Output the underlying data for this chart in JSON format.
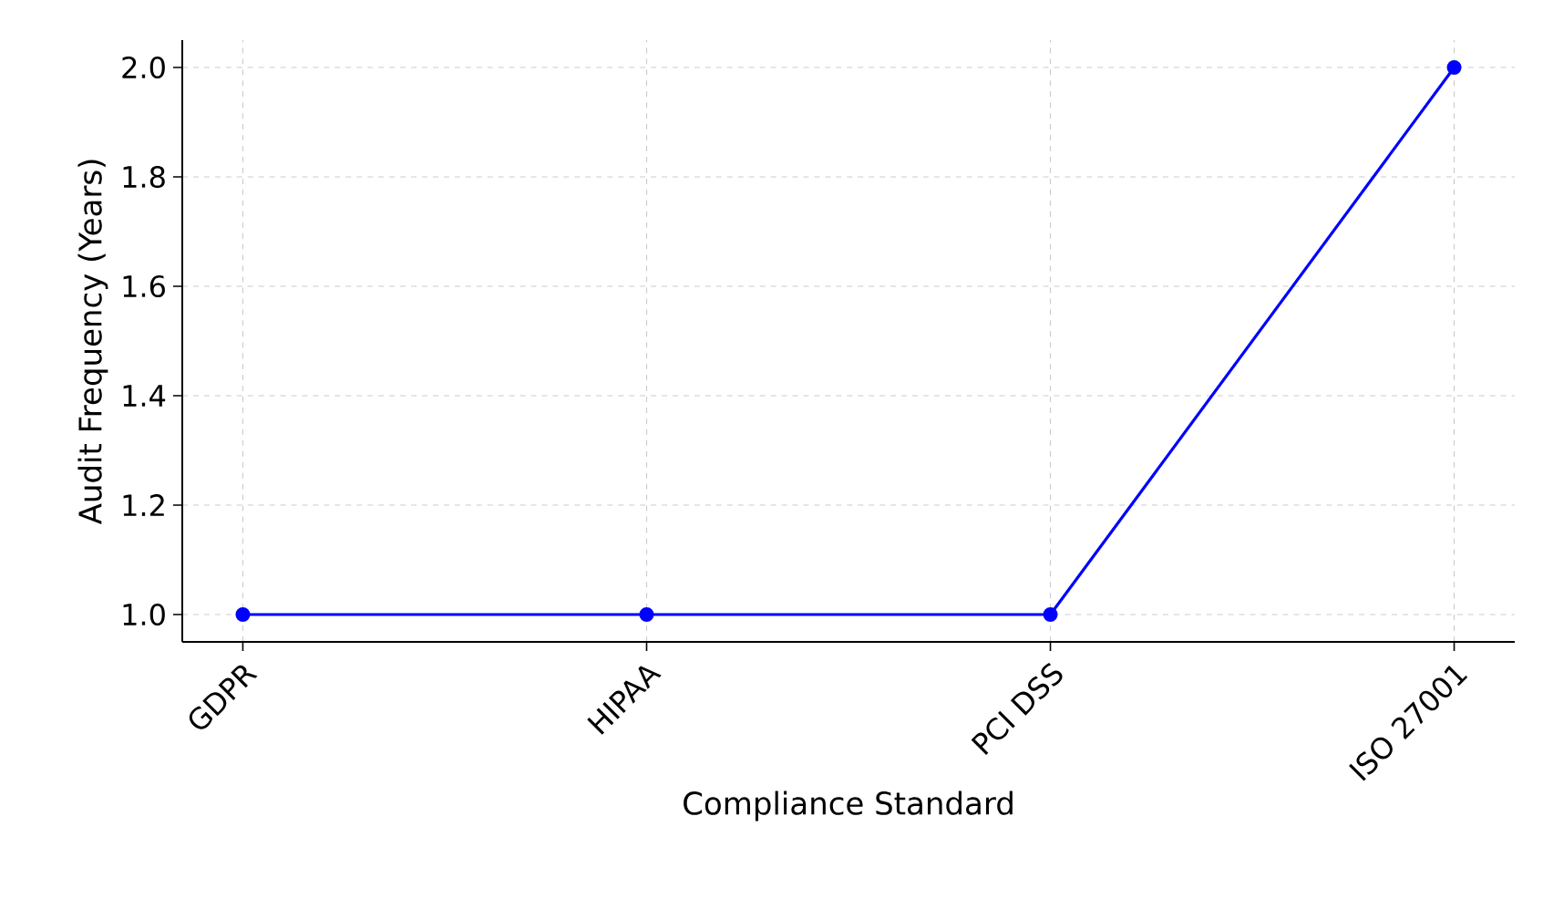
{
  "chart_data": {
    "type": "line",
    "xlabel": "Compliance Standard",
    "ylabel": "Audit Frequency (Years)",
    "categories": [
      "GDPR",
      "HIPAA",
      "PCI DSS",
      "ISO 27001"
    ],
    "series": [
      {
        "color": "#0000ff",
        "values": [
          1,
          1,
          1,
          2
        ]
      }
    ],
    "ylim": [
      0.95,
      2.05
    ],
    "yticks": [
      {
        "value": 1,
        "label": "1.0"
      },
      {
        "value": 1.2,
        "label": "1.2"
      },
      {
        "value": 1.4,
        "label": "1.4"
      },
      {
        "value": 1.6,
        "label": "1.6"
      },
      {
        "value": 1.8,
        "label": "1.8"
      },
      {
        "value": 2,
        "label": "2.0"
      }
    ],
    "grid": true,
    "marker": "circle",
    "line_style": "solid"
  }
}
